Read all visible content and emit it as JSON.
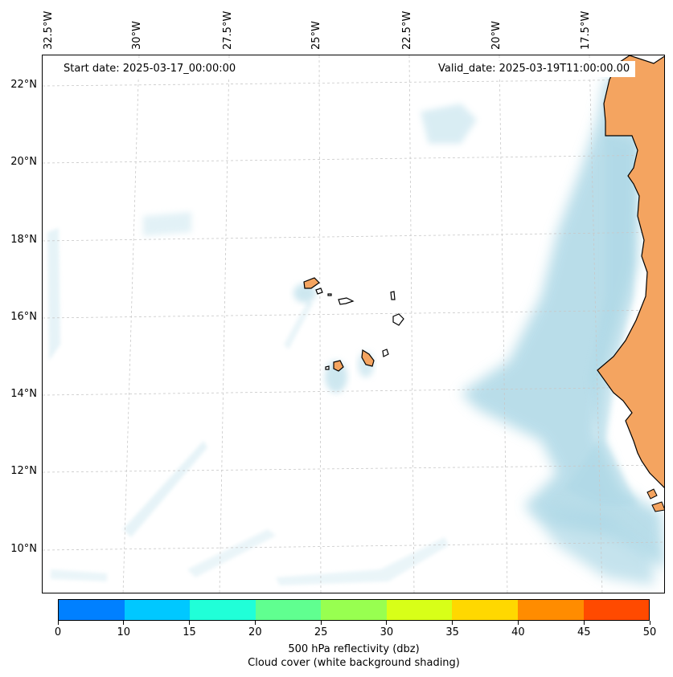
{
  "header": {
    "start_date": "Start date: 2025-03-17_00:00:00",
    "valid_date": "Valid_date: 2025-03-19T11:00:00.00"
  },
  "longitude_labels": [
    "32.5°W",
    "30°W",
    "27.5°W",
    "25°W",
    "22.5°W",
    "20°W",
    "17.5°W"
  ],
  "latitude_labels": [
    "22°N",
    "20°N",
    "18°N",
    "16°N",
    "14°N",
    "12°N",
    "10°N"
  ],
  "colors": {
    "land": "#f4a460",
    "cloud": "#add8e6",
    "gridline": "#c8c8c8",
    "coast": "#000000"
  },
  "colorbar": {
    "ticks": [
      "0",
      "10",
      "15",
      "20",
      "25",
      "30",
      "35",
      "40",
      "45",
      "50"
    ],
    "colors": [
      "#0080ff",
      "#00c8ff",
      "#20ffd8",
      "#60ff90",
      "#98ff50",
      "#d8ff18",
      "#ffd800",
      "#ff8c00",
      "#ff4a00"
    ],
    "caption_line1": "500 hPa reflectivity (dbz)",
    "caption_line2": "Cloud cover (white background shading)"
  }
}
